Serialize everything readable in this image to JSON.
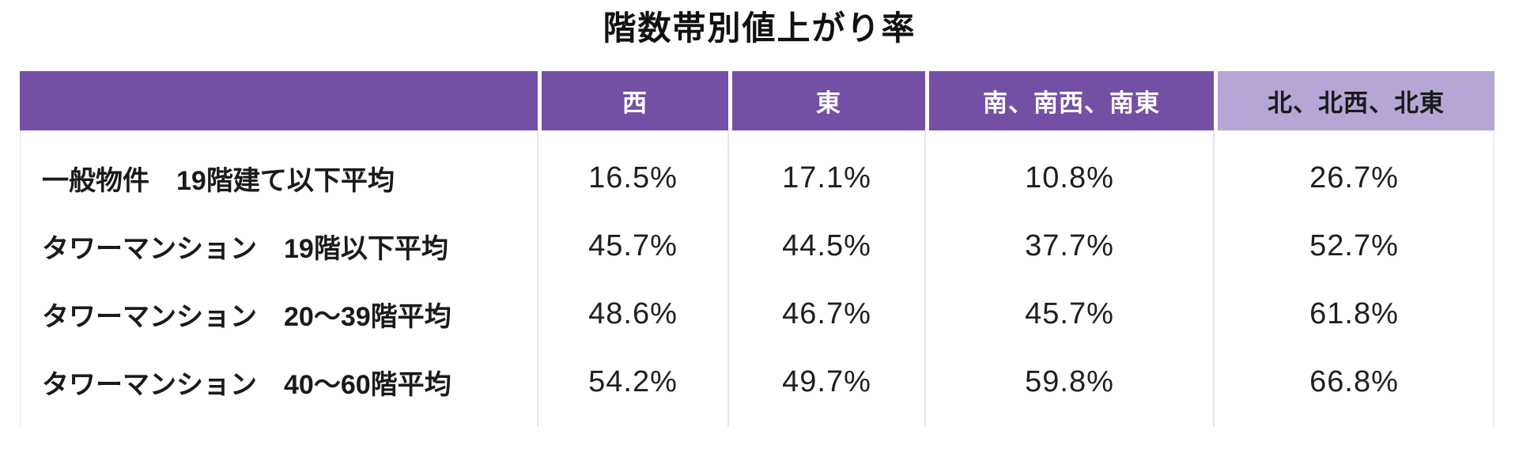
{
  "title": "階数帯別値上がり率",
  "colors": {
    "header_bg": "#7350A6",
    "header_light_bg": "#B5A6D5",
    "header_text": "#FFFFFF",
    "header_light_text": "#1A1A1A",
    "grid_line": "#E6E3EC",
    "body_text": "#1A1A1A"
  },
  "table": {
    "columns": {
      "col0": "",
      "col1": "西",
      "col2": "東",
      "col3": "南、南西、南東",
      "col4": "北、北西、北東"
    },
    "rows": [
      {
        "label": "一般物件　19階建て以下平均",
        "values": [
          "16.5%",
          "17.1%",
          "10.8%",
          "26.7%"
        ]
      },
      {
        "label": "タワーマンション　19階以下平均",
        "values": [
          "45.7%",
          "44.5%",
          "37.7%",
          "52.7%"
        ]
      },
      {
        "label": "タワーマンション　20〜39階平均",
        "values": [
          "48.6%",
          "46.7%",
          "45.7%",
          "61.8%"
        ]
      },
      {
        "label": "タワーマンション　40〜60階平均",
        "values": [
          "54.2%",
          "49.7%",
          "59.8%",
          "66.8%"
        ]
      }
    ]
  },
  "chart_data": {
    "type": "table",
    "title": "階数帯別値上がり率",
    "columns": [
      "西",
      "東",
      "南、南西、南東",
      "北、北西、北東"
    ],
    "row_labels": [
      "一般物件　19階建て以下平均",
      "タワーマンション　19階以下平均",
      "タワーマンション　20〜39階平均",
      "タワーマンション　40〜60階平均"
    ],
    "values_percent": [
      [
        16.5,
        17.1,
        10.8,
        26.7
      ],
      [
        45.7,
        44.5,
        37.7,
        52.7
      ],
      [
        48.6,
        46.7,
        45.7,
        61.8
      ],
      [
        54.2,
        49.7,
        59.8,
        66.8
      ]
    ],
    "unit": "%",
    "legend_position": "none",
    "grid": "vertical-only"
  }
}
